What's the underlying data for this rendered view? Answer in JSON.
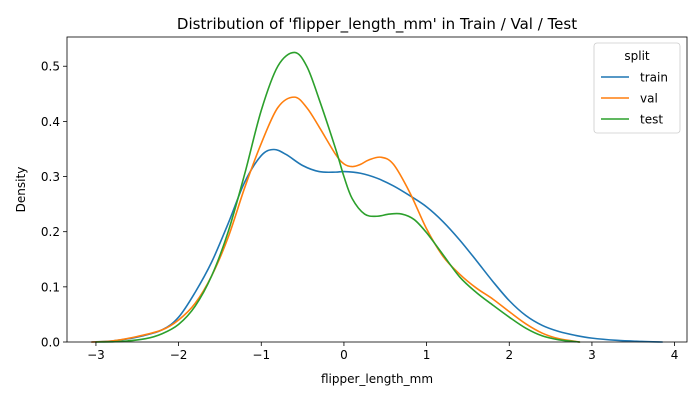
{
  "chart_data": {
    "type": "line",
    "title": "Distribution of 'flipper_length_mm' in Train / Val / Test",
    "xlabel": "flipper_length_mm",
    "ylabel": "Density",
    "xlim": [
      -3.35,
      4.15
    ],
    "ylim": [
      0,
      0.553
    ],
    "xticks": [
      -3,
      -2,
      -1,
      0,
      1,
      2,
      3,
      4
    ],
    "xtick_labels": [
      "−3",
      "−2",
      "−1",
      "0",
      "1",
      "2",
      "3",
      "4"
    ],
    "yticks": [
      0.0,
      0.1,
      0.2,
      0.3,
      0.4,
      0.5
    ],
    "ytick_labels": [
      "0.0",
      "0.1",
      "0.2",
      "0.3",
      "0.4",
      "0.5"
    ],
    "grid": false,
    "legend": {
      "title": "split",
      "placement": "top-right"
    },
    "series": [
      {
        "name": "train",
        "color": "#1f77b4",
        "x": [
          -3.05,
          -2.8,
          -2.5,
          -2.2,
          -2.0,
          -1.8,
          -1.6,
          -1.4,
          -1.2,
          -1.0,
          -0.85,
          -0.7,
          -0.5,
          -0.3,
          -0.1,
          0.0,
          0.2,
          0.4,
          0.6,
          0.8,
          1.0,
          1.2,
          1.4,
          1.6,
          1.8,
          2.0,
          2.2,
          2.4,
          2.6,
          2.8,
          3.0,
          3.3,
          3.6,
          3.85
        ],
        "y": [
          0.0,
          0.002,
          0.009,
          0.022,
          0.045,
          0.09,
          0.145,
          0.215,
          0.29,
          0.338,
          0.349,
          0.34,
          0.32,
          0.309,
          0.308,
          0.309,
          0.306,
          0.297,
          0.283,
          0.265,
          0.245,
          0.218,
          0.185,
          0.148,
          0.11,
          0.075,
          0.048,
          0.03,
          0.019,
          0.012,
          0.007,
          0.003,
          0.001,
          0.0
        ]
      },
      {
        "name": "val",
        "color": "#ff7f0e",
        "x": [
          -3.05,
          -2.8,
          -2.5,
          -2.2,
          -2.0,
          -1.8,
          -1.6,
          -1.4,
          -1.2,
          -1.0,
          -0.8,
          -0.6,
          -0.45,
          -0.3,
          -0.1,
          0.0,
          0.1,
          0.2,
          0.3,
          0.45,
          0.6,
          0.8,
          1.0,
          1.2,
          1.4,
          1.6,
          1.8,
          2.0,
          2.2,
          2.4,
          2.6,
          2.85
        ],
        "y": [
          0.0,
          0.002,
          0.01,
          0.022,
          0.04,
          0.07,
          0.12,
          0.19,
          0.28,
          0.36,
          0.425,
          0.444,
          0.425,
          0.39,
          0.34,
          0.323,
          0.318,
          0.322,
          0.33,
          0.335,
          0.322,
          0.27,
          0.205,
          0.155,
          0.123,
          0.098,
          0.078,
          0.055,
          0.033,
          0.016,
          0.006,
          0.0
        ]
      },
      {
        "name": "test",
        "color": "#2ca02c",
        "x": [
          -3.0,
          -2.7,
          -2.4,
          -2.2,
          -2.0,
          -1.8,
          -1.6,
          -1.4,
          -1.2,
          -1.0,
          -0.8,
          -0.6,
          -0.45,
          -0.3,
          -0.1,
          0.0,
          0.1,
          0.25,
          0.4,
          0.55,
          0.7,
          0.85,
          1.0,
          1.2,
          1.4,
          1.6,
          1.8,
          2.0,
          2.2,
          2.4,
          2.6,
          2.85
        ],
        "y": [
          0.0,
          0.001,
          0.006,
          0.015,
          0.032,
          0.065,
          0.12,
          0.2,
          0.305,
          0.42,
          0.5,
          0.525,
          0.5,
          0.44,
          0.35,
          0.3,
          0.26,
          0.232,
          0.228,
          0.232,
          0.232,
          0.222,
          0.198,
          0.158,
          0.118,
          0.09,
          0.067,
          0.045,
          0.025,
          0.011,
          0.004,
          0.0
        ]
      }
    ]
  }
}
